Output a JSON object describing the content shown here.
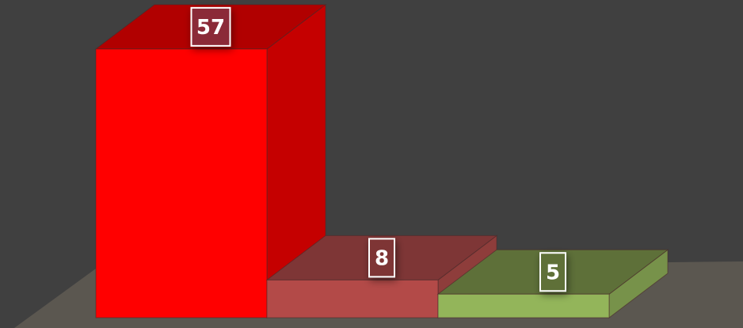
{
  "chart_data": {
    "type": "bar",
    "style": "3d-columns",
    "values": [
      57,
      8,
      5
    ],
    "data_labels": [
      "57",
      "8",
      "5"
    ],
    "colors": {
      "background": "#404040",
      "floor": "#5b5750",
      "bars": [
        {
          "front": "#ff0000",
          "side": "#c50000",
          "top": "#b10000",
          "label_box": "#8b2a38"
        },
        {
          "front": "#b34a48",
          "side": "#8e3d3b",
          "top": "#7e3636",
          "label_box": "#7e3636"
        },
        {
          "front": "#93b55a",
          "side": "#77924a",
          "top": "#5e7039",
          "label_box": "#5e7039"
        }
      ]
    },
    "grid": false,
    "legend": "none"
  }
}
